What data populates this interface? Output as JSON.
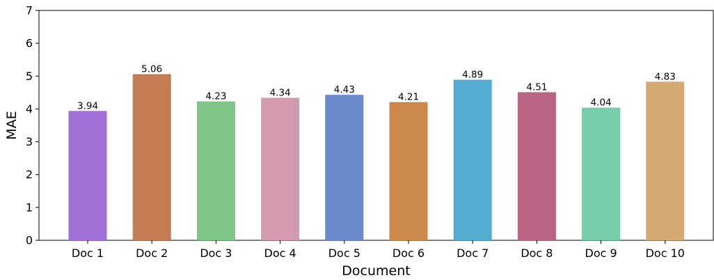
{
  "chart_data": {
    "type": "bar",
    "title": "",
    "xlabel": "Document",
    "ylabel": "MAE",
    "categories": [
      "Doc 1",
      "Doc 2",
      "Doc 3",
      "Doc 4",
      "Doc 5",
      "Doc 6",
      "Doc 7",
      "Doc 8",
      "Doc 9",
      "Doc 10"
    ],
    "values": [
      3.94,
      5.06,
      4.23,
      4.34,
      4.43,
      4.21,
      4.89,
      4.51,
      4.04,
      4.83
    ],
    "value_labels": [
      "3.94",
      "5.06",
      "4.23",
      "4.34",
      "4.43",
      "4.21",
      "4.89",
      "4.51",
      "4.04",
      "4.83"
    ],
    "colors": [
      "#a26fd6",
      "#c67c52",
      "#7fc585",
      "#d49aaf",
      "#6a8acc",
      "#cc894b",
      "#54aacf",
      "#ba6485",
      "#78cdaa",
      "#d3a974"
    ],
    "ylim": [
      0,
      7
    ],
    "yticks": [
      "0",
      "1",
      "2",
      "3",
      "4",
      "5",
      "6",
      "7"
    ],
    "grid": false,
    "legend": "none"
  }
}
